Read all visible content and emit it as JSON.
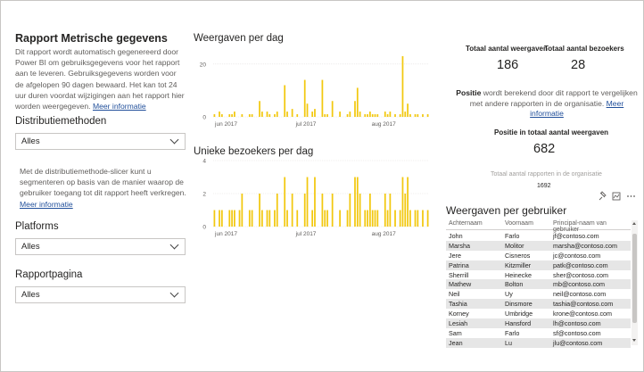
{
  "left_pane": {
    "title": "Rapport Metrische gegevens",
    "description": "Dit rapport wordt automatisch gegenereerd door Power BI om gebruiksgegevens voor het rapport aan te leveren. Gebruiksgegevens worden voor de afgelopen 90 dagen bewaard. Het kan tot 24 uur duren voordat wijzigingen aan het rapport hier worden weergegeven.",
    "more_info": "Meer informatie",
    "distribution_title": "Distributiemethoden",
    "distribution_value": "Alles",
    "distribution_note": "Met de distributiemethode-slicer kunt u segmenteren op basis van de manier waarop de gebruiker toegang tot dit rapport heeft verkregen.",
    "distribution_more_info": "Meer informatie",
    "platforms_title": "Platforms",
    "platforms_value": "Alles",
    "page_title": "Rapportpagina",
    "page_value": "Alles"
  },
  "charts": {
    "views_title": "Weergaven per dag",
    "visitors_title": "Unieke bezoekers per dag"
  },
  "chart_data": [
    {
      "type": "bar",
      "title": "Weergaven per dag",
      "xtick_labels": [
        "jun 2017",
        "jul 2017",
        "aug 2017"
      ],
      "ytick_labels": [
        "0",
        "20"
      ],
      "ylim": [
        0,
        25
      ],
      "color": "#f2c80f",
      "values": [
        1,
        0,
        2,
        1,
        0,
        0,
        1,
        1,
        2,
        0,
        0,
        1,
        0,
        0,
        1,
        1,
        0,
        0,
        6,
        2,
        0,
        2,
        1,
        0,
        1,
        2,
        0,
        0,
        12,
        2,
        0,
        3,
        0,
        1,
        0,
        0,
        14,
        5,
        0,
        2,
        3,
        0,
        0,
        14,
        1,
        1,
        0,
        6,
        0,
        0,
        2,
        0,
        0,
        1,
        2,
        0,
        6,
        11,
        2,
        0,
        1,
        1,
        2,
        1,
        1,
        1,
        0,
        0,
        2,
        1,
        2,
        0,
        1,
        0,
        1,
        23,
        2,
        5,
        1,
        0,
        1,
        1,
        0,
        1,
        0,
        1
      ]
    },
    {
      "type": "bar",
      "title": "Unieke bezoekers per dag",
      "xtick_labels": [
        "jun 2017",
        "jul 2017",
        "aug 2017"
      ],
      "ytick_labels": [
        "0",
        "2",
        "4"
      ],
      "ylim": [
        0,
        4
      ],
      "color": "#f2c80f",
      "values": [
        1,
        0,
        1,
        1,
        0,
        0,
        1,
        1,
        1,
        0,
        1,
        2,
        0,
        0,
        1,
        1,
        0,
        0,
        2,
        1,
        0,
        1,
        1,
        0,
        1,
        2,
        0,
        0,
        3,
        1,
        0,
        2,
        0,
        1,
        0,
        0,
        2,
        3,
        0,
        1,
        3,
        0,
        0,
        2,
        1,
        1,
        0,
        2,
        0,
        0,
        1,
        0,
        0,
        1,
        2,
        0,
        3,
        3,
        2,
        0,
        1,
        1,
        2,
        1,
        1,
        1,
        0,
        0,
        2,
        1,
        2,
        0,
        1,
        0,
        1,
        3,
        2,
        3,
        1,
        0,
        1,
        1,
        0,
        1,
        0,
        1
      ]
    }
  ],
  "kpis": {
    "total_views_label": "Totaal aantal weergaven",
    "total_views_value": "186",
    "total_visitors_label": "Totaal aantal bezoekers",
    "total_visitors_value": "28",
    "position_word": "Positie",
    "position_text": " wordt berekend door dit rapport te vergelijken met andere rapporten in de organisatie.",
    "position_more_info": "Meer informatie",
    "rank_label": "Positie in totaal aantal weergaven",
    "rank_value": "682",
    "org_total_label": "Totaal aantal rapporten in de organisatie",
    "org_total_value": "1692"
  },
  "table": {
    "title": "Weergaven per gebruiker",
    "columns": [
      "Achternaam",
      "Voornaam",
      "Principal-naam van gebruiker"
    ],
    "rows": [
      [
        "John",
        "Farlo",
        "jf@contoso.com"
      ],
      [
        "Marsha",
        "Molitor",
        "marsha@contoso.com"
      ],
      [
        "Jere",
        "Cisneros",
        "jc@contoso.com"
      ],
      [
        "Patrina",
        "Kitzmiller",
        "patk@contoso.com"
      ],
      [
        "Sherrill",
        "Heinecke",
        "sher@contoso.com"
      ],
      [
        "Mathew",
        "Bolton",
        "mb@contoso.com"
      ],
      [
        "Neil",
        "Uy",
        "neil@contoso.com"
      ],
      [
        "Tashia",
        "Dinsmore",
        "tashia@contoso.com"
      ],
      [
        "Korney",
        "Umbridge",
        "krone@contoso.com"
      ],
      [
        "Lesiah",
        "Hansford",
        "lh@contoso.com"
      ],
      [
        "Sam",
        "Farlo",
        "sf@contoso.com"
      ],
      [
        "Jean",
        "Lu",
        "jlu@contoso.com"
      ]
    ]
  }
}
